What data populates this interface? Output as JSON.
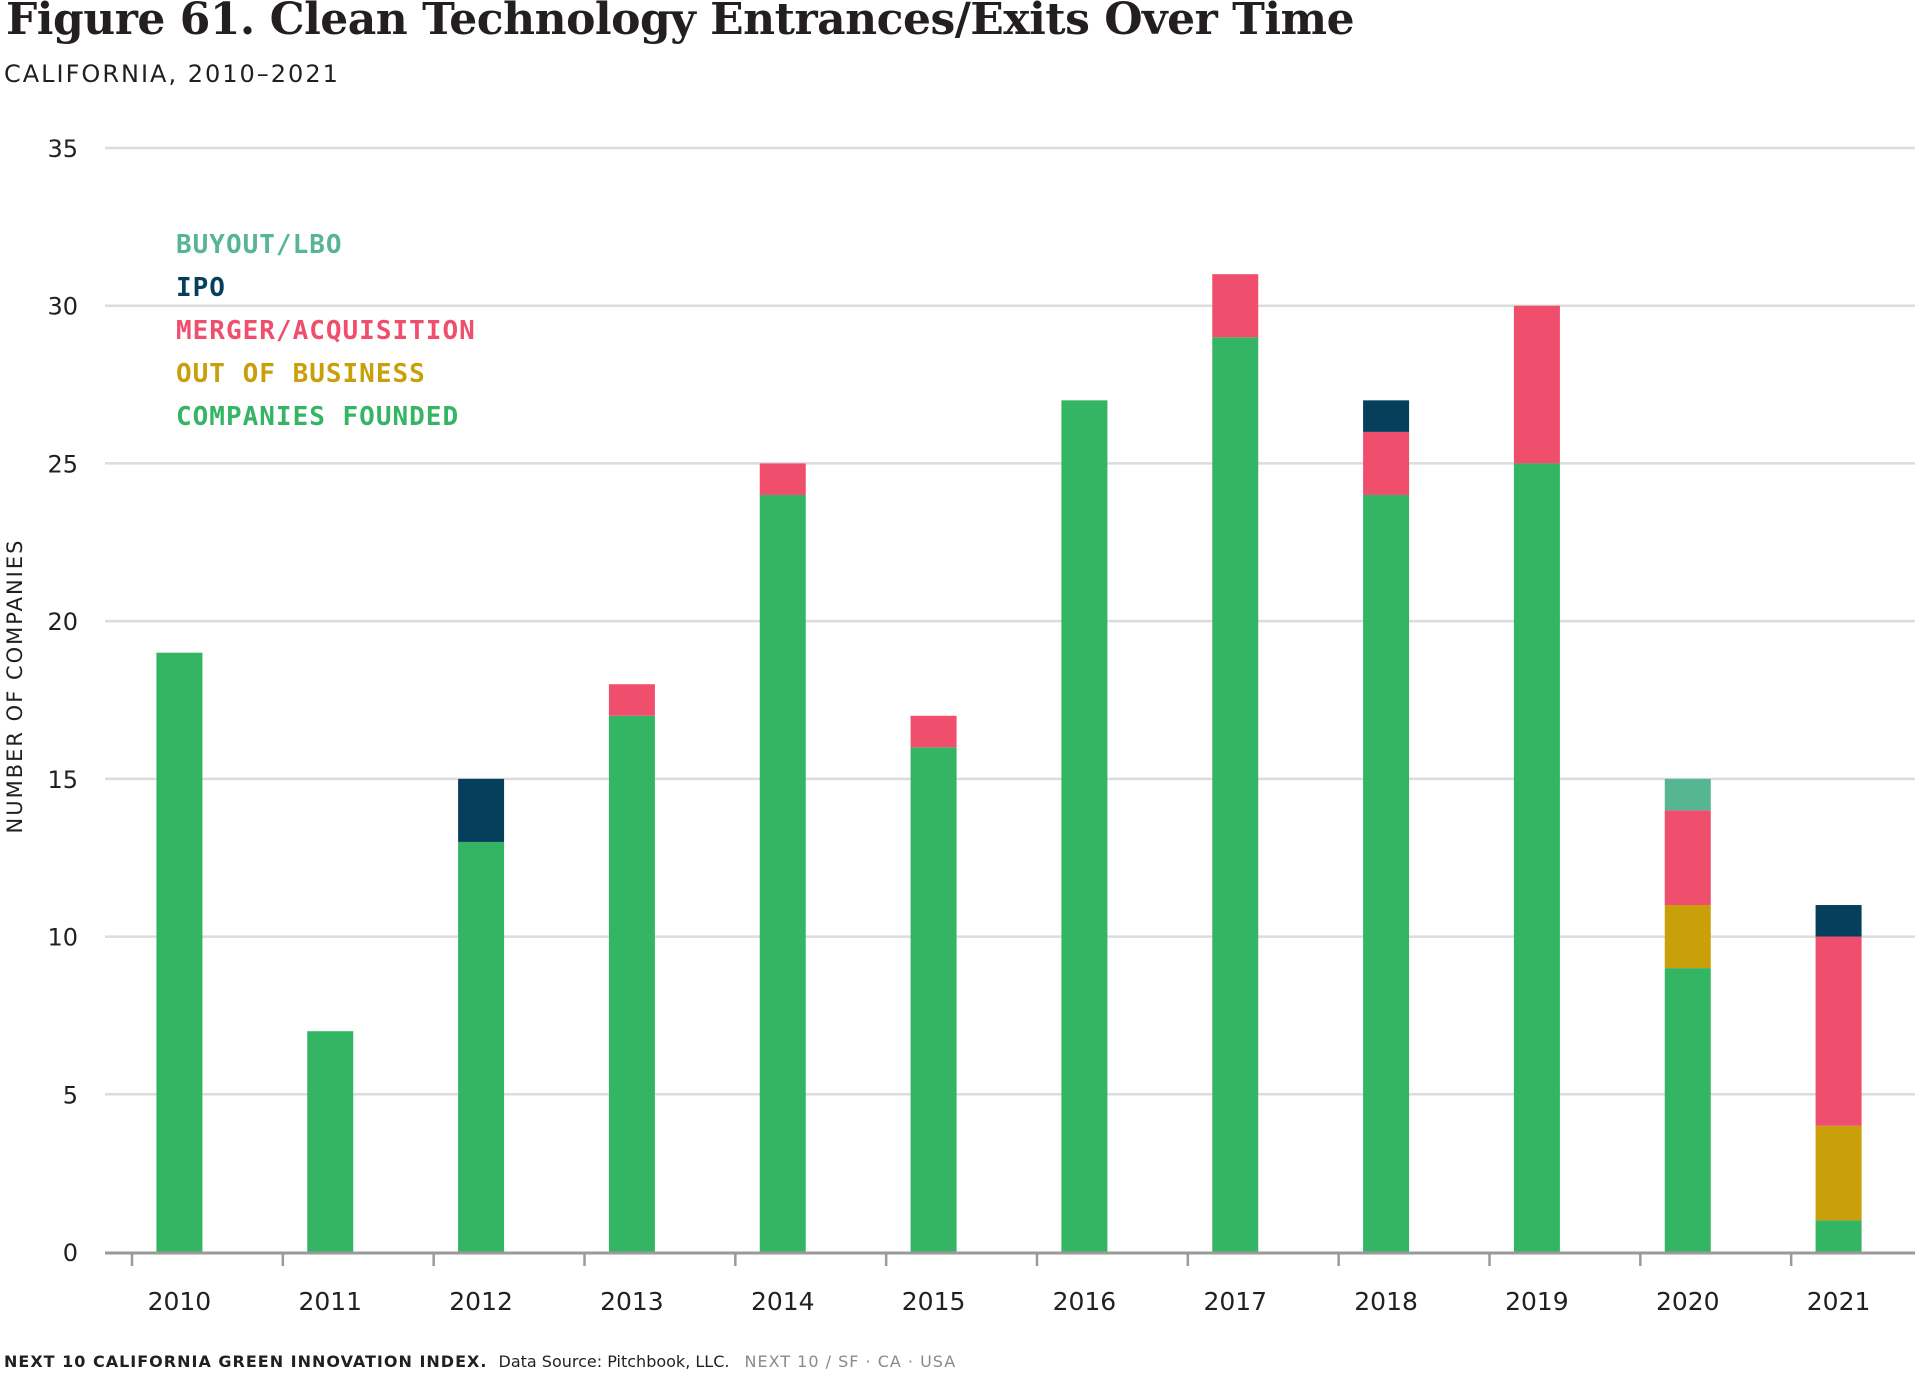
{
  "header": {
    "title": "Figure 61. Clean Technology Entrances/Exits Over Time",
    "subtitle": "CALIFORNIA, 2010–2021"
  },
  "footer": {
    "brand": "NEXT 10 CALIFORNIA GREEN INNOVATION INDEX.",
    "source": "Data Source: Pitchbook, LLC.",
    "org": "NEXT 10  /  SF · CA · USA"
  },
  "chart_data": {
    "type": "bar",
    "stacked": true,
    "title": "Figure 61. Clean Technology Entrances/Exits Over Time",
    "subtitle": "CALIFORNIA, 2010–2021",
    "xlabel": "",
    "ylabel": "NUMBER OF COMPANIES",
    "ylim": [
      0,
      35
    ],
    "yticks": [
      "0",
      "5",
      "10",
      "15",
      "20",
      "25",
      "30",
      "35"
    ],
    "grid": true,
    "legend_position": "top-left",
    "categories": [
      "2010",
      "2011",
      "2012",
      "2013",
      "2014",
      "2015",
      "2016",
      "2017",
      "2018",
      "2019",
      "2020",
      "2021"
    ],
    "series": [
      {
        "name": "COMPANIES FOUNDED",
        "color": "#34b563",
        "values": [
          19,
          7,
          13,
          17,
          24,
          16,
          27,
          29,
          24,
          25,
          9,
          1
        ]
      },
      {
        "name": "OUT OF BUSINESS",
        "color": "#c9a00a",
        "values": [
          0,
          0,
          0,
          0,
          0,
          0,
          0,
          0,
          0,
          0,
          2,
          3
        ]
      },
      {
        "name": "MERGER/ACQUISITION",
        "color": "#ef4f6d",
        "values": [
          0,
          0,
          0,
          1,
          1,
          1,
          0,
          2,
          2,
          5,
          3,
          6
        ]
      },
      {
        "name": "IPO",
        "color": "#053f5c",
        "values": [
          0,
          0,
          2,
          0,
          0,
          0,
          0,
          0,
          1,
          0,
          0,
          1
        ]
      },
      {
        "name": "BUYOUT/LBO",
        "color": "#56b592",
        "values": [
          0,
          0,
          0,
          0,
          0,
          0,
          0,
          0,
          0,
          0,
          1,
          0
        ]
      }
    ],
    "legend_order": [
      "BUYOUT/LBO",
      "IPO",
      "MERGER/ACQUISITION",
      "OUT OF BUSINESS",
      "COMPANIES FOUNDED"
    ]
  }
}
